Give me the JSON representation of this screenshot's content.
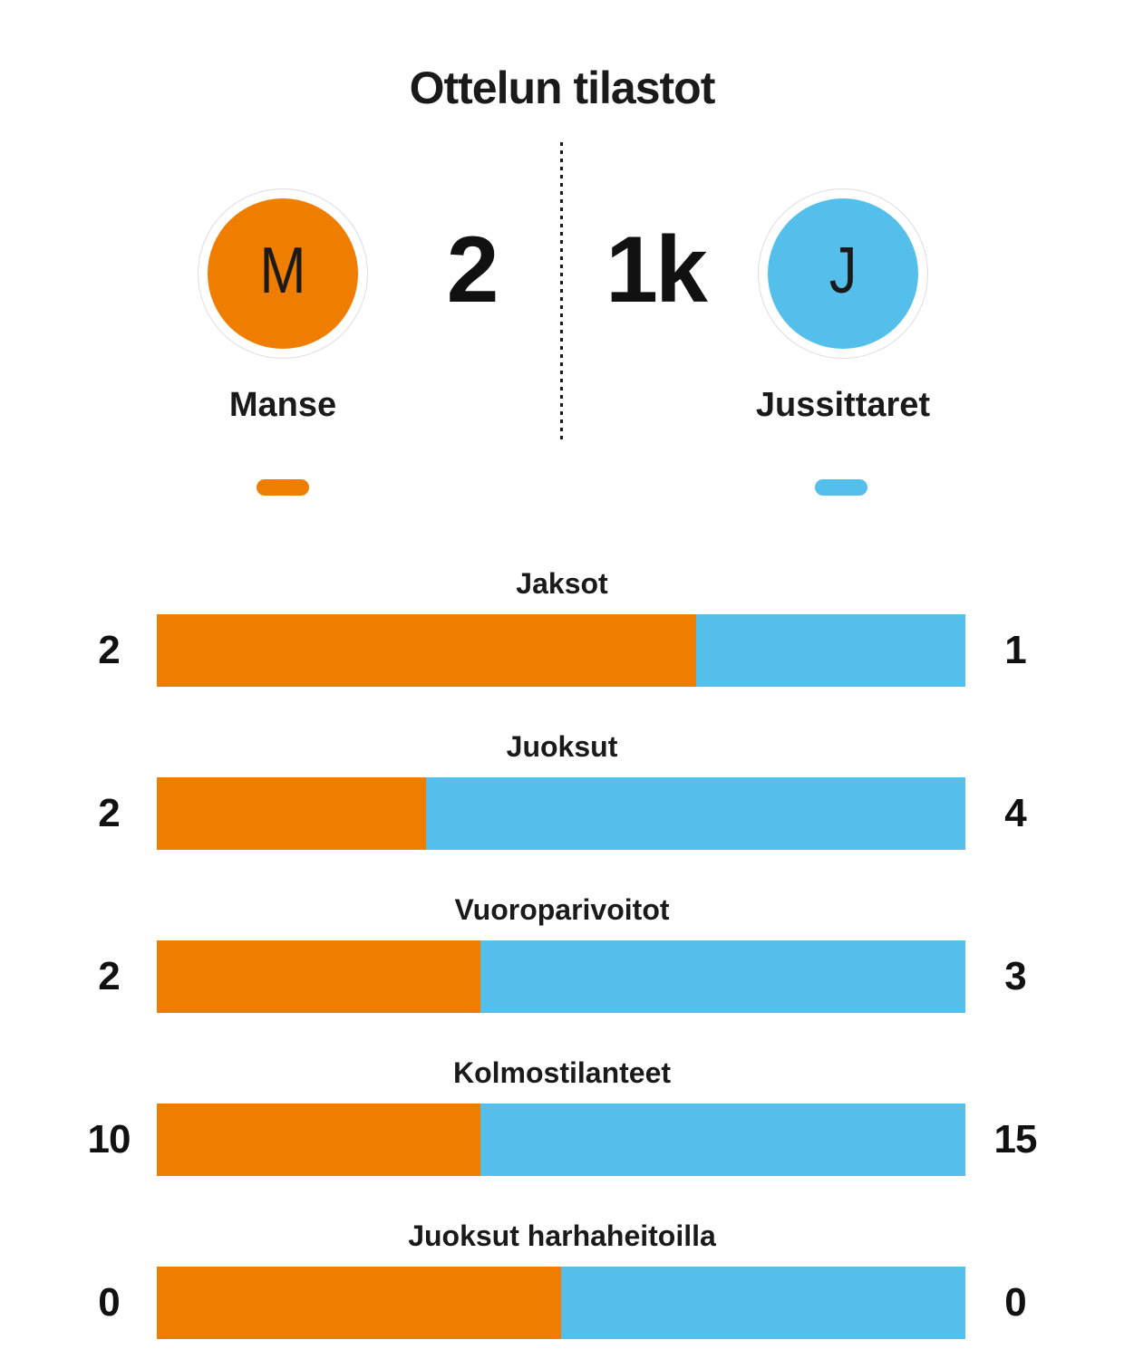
{
  "title": "Ottelun tilastot",
  "scoreboard": {
    "home_score": "2",
    "away_score": "1k"
  },
  "teams": {
    "home": {
      "initial": "M",
      "name": "Manse",
      "color": "#EF7D00"
    },
    "away": {
      "initial": "J",
      "name": "Jussittaret",
      "color": "#55BFEC"
    }
  },
  "stats": {
    "rows": [
      {
        "label": "Jaksot",
        "home": 2,
        "away": 1
      },
      {
        "label": "Juoksut",
        "home": 2,
        "away": 4
      },
      {
        "label": "Vuoroparivoitot",
        "home": 2,
        "away": 3
      },
      {
        "label": "Kolmostilanteet",
        "home": 10,
        "away": 15
      },
      {
        "label": "Juoksut harhaheitoilla",
        "home": 0,
        "away": 0
      }
    ]
  },
  "chart_data": {
    "type": "bar",
    "title": "Ottelun tilastot",
    "categories": [
      "Jaksot",
      "Juoksut",
      "Vuoroparivoitot",
      "Kolmostilanteet",
      "Juoksut harhaheitoilla"
    ],
    "series": [
      {
        "name": "Manse",
        "values": [
          2,
          2,
          2,
          10,
          0
        ]
      },
      {
        "name": "Jussittaret",
        "values": [
          1,
          4,
          3,
          15,
          0
        ]
      }
    ],
    "layout": "horizontal-stacked-proportional",
    "value_labels": "both-ends",
    "colors": {
      "Manse": "#EF7D00",
      "Jussittaret": "#55BFEC"
    }
  }
}
